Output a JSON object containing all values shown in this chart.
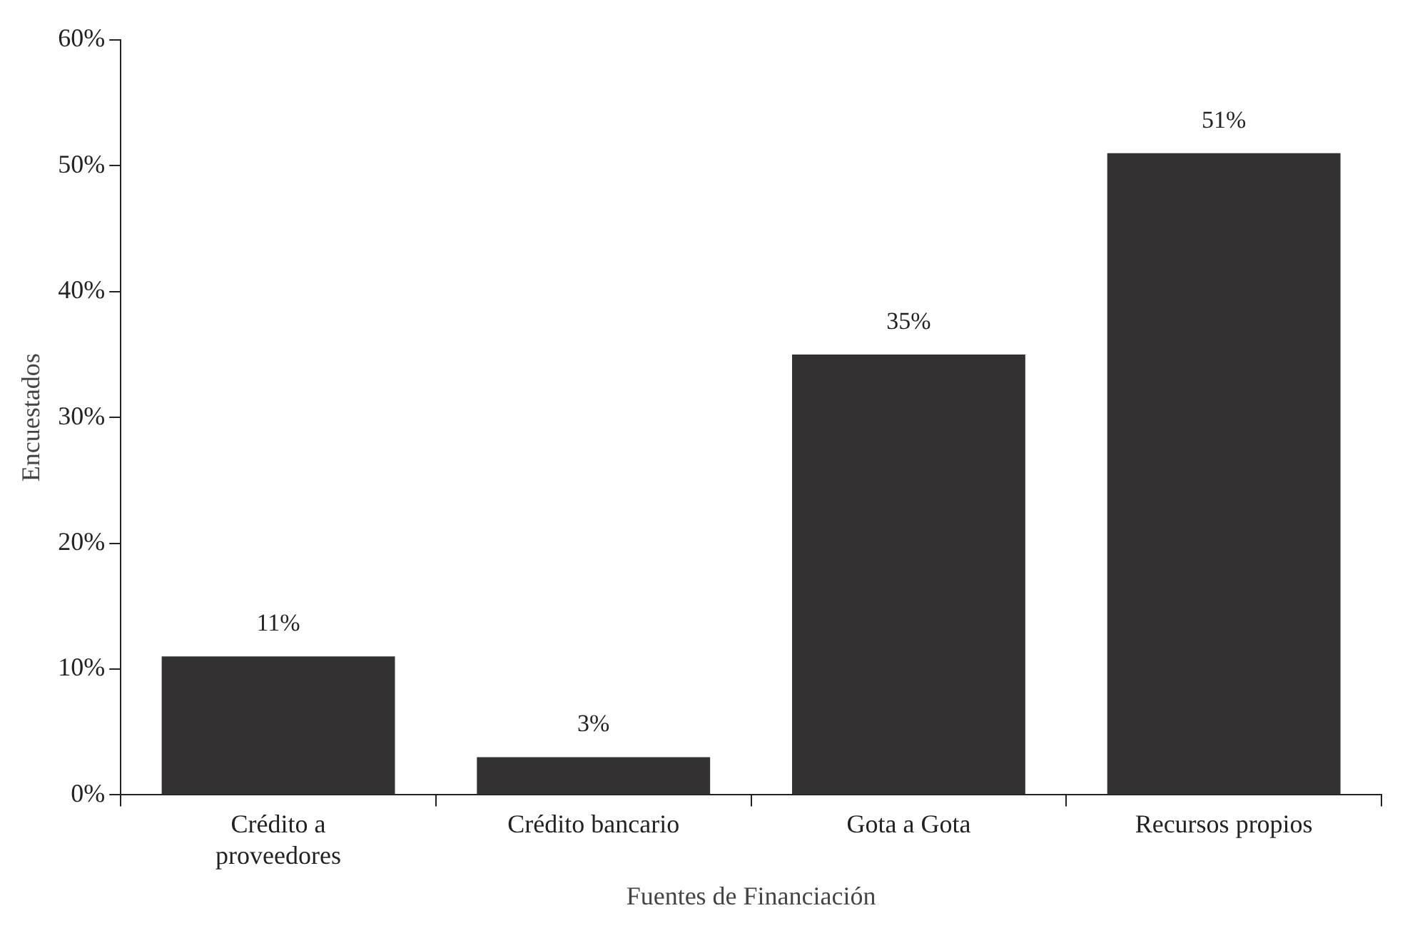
{
  "chart_data": {
    "type": "bar",
    "xlabel": "Fuentes de Financiación",
    "ylabel": "Encuestados",
    "categories": [
      "Crédito a proveedores",
      "Crédito bancario",
      "Gota a Gota",
      "Recursos propios"
    ],
    "values": [
      11,
      3,
      35,
      51
    ],
    "value_labels": [
      "11%",
      "3%",
      "35%",
      "51%"
    ],
    "color": "#333132",
    "ylim": [
      0,
      60
    ],
    "yticks": [
      {
        "value": 0,
        "label": "0%"
      },
      {
        "value": 10,
        "label": "10%"
      },
      {
        "value": 20,
        "label": "20%"
      },
      {
        "value": 30,
        "label": "30%"
      },
      {
        "value": 40,
        "label": "40%"
      },
      {
        "value": 50,
        "label": "50%"
      },
      {
        "value": 60,
        "label": "60%"
      }
    ],
    "grid": false,
    "legend": false
  }
}
